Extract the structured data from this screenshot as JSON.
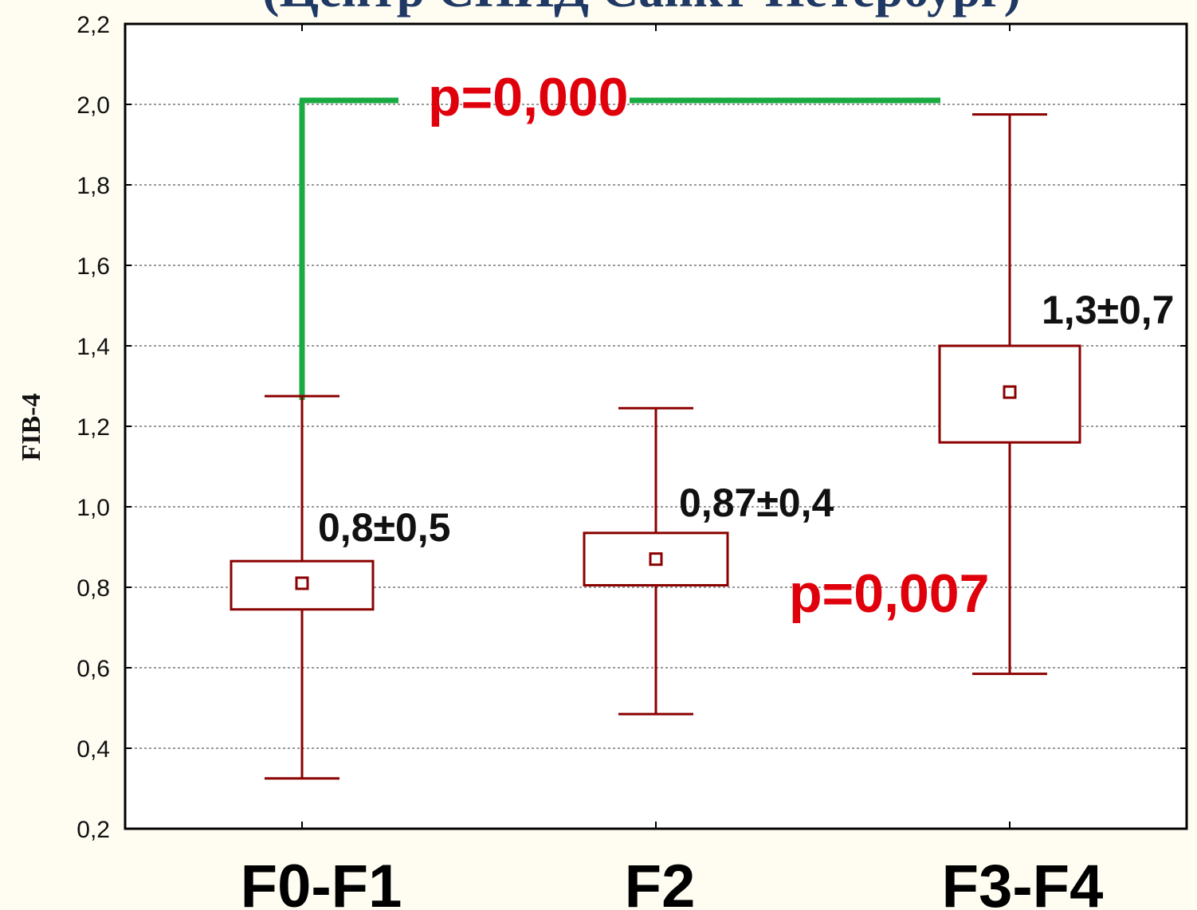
{
  "title_fragment": "(Центр СПИД Санкт-Петербург)",
  "chart_data": {
    "type": "boxplot",
    "ylabel": "FIB-4",
    "xlabel": "",
    "ylim": [
      0.2,
      2.2
    ],
    "yticks": [
      "0,2",
      "0,4",
      "0,6",
      "0,8",
      "1,0",
      "1,2",
      "1,4",
      "1,6",
      "1,8",
      "2,0",
      "2,2"
    ],
    "ytick_values": [
      0.2,
      0.4,
      0.6,
      0.8,
      1.0,
      1.2,
      1.4,
      1.6,
      1.8,
      2.0,
      2.2
    ],
    "grid": true,
    "categories": [
      "F0-F1",
      "F2",
      "F3-F4"
    ],
    "groups": [
      {
        "name": "F0-F1",
        "mean": 0.81,
        "box_low": 0.745,
        "box_high": 0.865,
        "whisker_low": 0.325,
        "whisker_high": 1.275,
        "annotation": "0,8±0,5"
      },
      {
        "name": "F2",
        "mean": 0.87,
        "box_low": 0.805,
        "box_high": 0.935,
        "whisker_low": 0.485,
        "whisker_high": 1.245,
        "annotation": "0,87±0,4"
      },
      {
        "name": "F3-F4",
        "mean": 1.285,
        "box_low": 1.16,
        "box_high": 1.4,
        "whisker_low": 0.585,
        "whisker_high": 1.975,
        "annotation": "1,3±0,7"
      }
    ],
    "significance": [
      {
        "text": "p=0,000",
        "level": 2.01
      },
      {
        "text": "p=0,007"
      }
    ],
    "colors": {
      "box": "#8b0000",
      "bracket": "#1aaa44",
      "p_text": "#e0000b",
      "grid": "#999999"
    }
  }
}
